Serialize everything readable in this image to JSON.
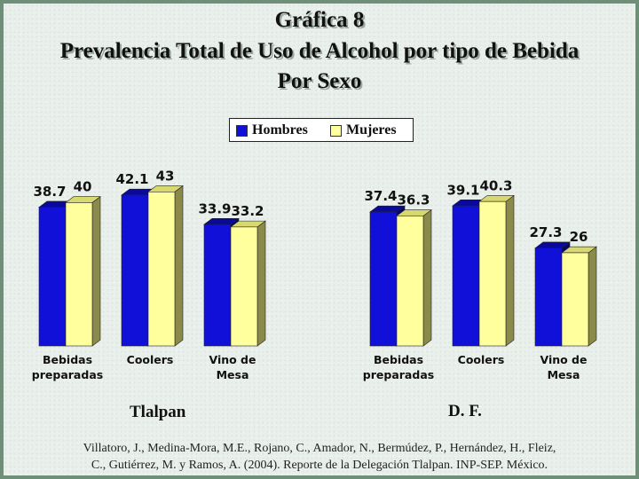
{
  "title": {
    "line1": "Gráfica 8",
    "line2": "Prevalencia Total de Uso de Alcohol por tipo de Bebida",
    "line3": "Por Sexo"
  },
  "legend": {
    "items": [
      {
        "name": "Hombres",
        "color": "#1010d8"
      },
      {
        "name": "Mujeres",
        "color": "#ffff9e"
      }
    ]
  },
  "chart_data": [
    {
      "type": "bar",
      "title": "Tlalpan",
      "categories": [
        [
          "Bebidas",
          "preparadas"
        ],
        [
          "Coolers"
        ],
        [
          "Vino de",
          "Mesa"
        ]
      ],
      "series": [
        {
          "name": "Hombres",
          "values": [
            38.7,
            42.1,
            33.9
          ]
        },
        {
          "name": "Mujeres",
          "values": [
            40,
            43,
            33.2
          ]
        }
      ],
      "ylim": [
        0,
        50
      ]
    },
    {
      "type": "bar",
      "title": "D. F.",
      "categories": [
        [
          "Bebidas",
          "preparadas"
        ],
        [
          "Coolers"
        ],
        [
          "Vino de",
          "Mesa"
        ]
      ],
      "series": [
        {
          "name": "Hombres",
          "values": [
            37.4,
            39.1,
            27.3
          ]
        },
        {
          "name": "Mujeres",
          "values": [
            36.3,
            40.3,
            26
          ]
        }
      ],
      "ylim": [
        0,
        50
      ]
    }
  ],
  "source": {
    "line1": "Villatoro, J., Medina-Mora, M.E., Rojano, C., Amador, N., Bermúdez, P., Hernández, H., Fleiz,",
    "line2": "C., Gutiérrez, M. y Ramos, A. (2004). Reporte de la Delegación Tlalpan. INP-SEP. México."
  }
}
